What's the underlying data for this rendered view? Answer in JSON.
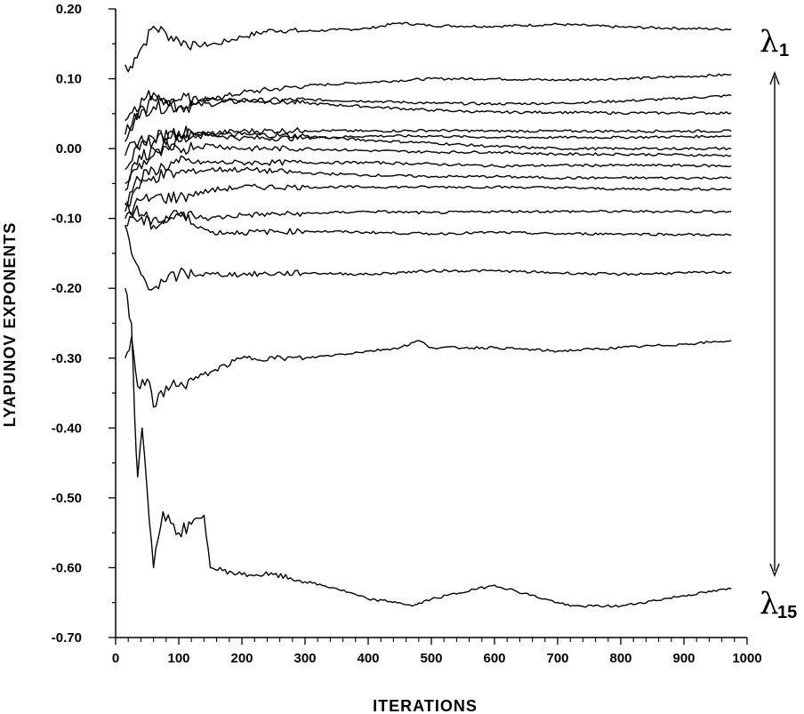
{
  "chart_data": {
    "type": "line",
    "title": "",
    "xlabel": "ITERATIONS",
    "ylabel": "LYAPUNOV EXPONENTS",
    "xlim": [
      0,
      1000
    ],
    "ylim": [
      -0.7,
      0.2
    ],
    "x_ticks": [
      0,
      100,
      200,
      300,
      400,
      500,
      600,
      700,
      800,
      900,
      1000
    ],
    "x_tick_labels": [
      "0",
      "100",
      "200",
      "300",
      "400",
      "500",
      "600",
      "700",
      "800",
      "900",
      "1000"
    ],
    "y_ticks": [
      0.2,
      0.1,
      0.0,
      -0.1,
      -0.2,
      -0.3,
      -0.4,
      -0.5,
      -0.6,
      -0.7
    ],
    "y_tick_labels": [
      "0.20",
      "0.10",
      "0.00",
      "-0.10",
      "-0.20",
      "-0.30",
      "-0.40",
      "-0.50",
      "-0.60",
      "-0.70"
    ],
    "grid": false,
    "series": [
      {
        "values": [
          [
            15,
            0.12
          ],
          [
            20,
            0.11
          ],
          [
            30,
            0.13
          ],
          [
            45,
            0.15
          ],
          [
            60,
            0.175
          ],
          [
            80,
            0.165
          ],
          [
            100,
            0.155
          ],
          [
            130,
            0.148
          ],
          [
            160,
            0.15
          ],
          [
            200,
            0.16
          ],
          [
            250,
            0.17
          ],
          [
            300,
            0.168
          ],
          [
            350,
            0.17
          ],
          [
            400,
            0.172
          ],
          [
            450,
            0.18
          ],
          [
            500,
            0.176
          ],
          [
            600,
            0.175
          ],
          [
            700,
            0.178
          ],
          [
            800,
            0.174
          ],
          [
            900,
            0.172
          ],
          [
            975,
            0.171
          ]
        ]
      },
      {
        "values": [
          [
            15,
            0.04
          ],
          [
            30,
            0.06
          ],
          [
            60,
            0.08
          ],
          [
            80,
            0.07
          ],
          [
            100,
            0.06
          ],
          [
            150,
            0.07
          ],
          [
            200,
            0.08
          ],
          [
            300,
            0.09
          ],
          [
            400,
            0.095
          ],
          [
            500,
            0.1
          ],
          [
            600,
            0.1
          ],
          [
            700,
            0.098
          ],
          [
            800,
            0.1
          ],
          [
            900,
            0.103
          ],
          [
            975,
            0.106
          ]
        ]
      },
      {
        "values": [
          [
            15,
            0.02
          ],
          [
            30,
            0.05
          ],
          [
            60,
            0.06
          ],
          [
            100,
            0.06
          ],
          [
            200,
            0.068
          ],
          [
            300,
            0.07
          ],
          [
            400,
            0.068
          ],
          [
            500,
            0.065
          ],
          [
            600,
            0.064
          ],
          [
            700,
            0.065
          ],
          [
            800,
            0.068
          ],
          [
            900,
            0.072
          ],
          [
            975,
            0.076
          ]
        ]
      },
      {
        "values": [
          [
            15,
            0.01
          ],
          [
            30,
            0.04
          ],
          [
            60,
            0.07
          ],
          [
            100,
            0.07
          ],
          [
            150,
            0.072
          ],
          [
            200,
            0.07
          ],
          [
            300,
            0.065
          ],
          [
            400,
            0.06
          ],
          [
            500,
            0.055
          ],
          [
            600,
            0.052
          ],
          [
            700,
            0.052
          ],
          [
            800,
            0.051
          ],
          [
            900,
            0.051
          ],
          [
            975,
            0.051
          ]
        ]
      },
      {
        "values": [
          [
            15,
            -0.03
          ],
          [
            30,
            0.0
          ],
          [
            60,
            0.01
          ],
          [
            100,
            0.02
          ],
          [
            150,
            0.022
          ],
          [
            200,
            0.025
          ],
          [
            300,
            0.026
          ],
          [
            400,
            0.025
          ],
          [
            500,
            0.026
          ],
          [
            600,
            0.025
          ],
          [
            700,
            0.025
          ],
          [
            800,
            0.025
          ],
          [
            900,
            0.025
          ],
          [
            975,
            0.025
          ]
        ]
      },
      {
        "values": [
          [
            15,
            -0.01
          ],
          [
            30,
            0.01
          ],
          [
            60,
            0.015
          ],
          [
            100,
            0.025
          ],
          [
            150,
            0.02
          ],
          [
            200,
            0.015
          ],
          [
            300,
            0.015
          ],
          [
            400,
            0.018
          ],
          [
            500,
            0.018
          ],
          [
            600,
            0.016
          ],
          [
            700,
            0.016
          ],
          [
            800,
            0.016
          ],
          [
            900,
            0.017
          ],
          [
            975,
            0.018
          ]
        ]
      },
      {
        "values": [
          [
            15,
            -0.05
          ],
          [
            30,
            -0.02
          ],
          [
            60,
            0.0
          ],
          [
            100,
            0.01
          ],
          [
            150,
            0.02
          ],
          [
            200,
            0.02
          ],
          [
            300,
            0.018
          ],
          [
            400,
            0.012
          ],
          [
            500,
            0.008
          ],
          [
            600,
            0.003
          ],
          [
            700,
            0.0
          ],
          [
            800,
            0.0
          ],
          [
            900,
            0.0
          ],
          [
            975,
            0.0
          ]
        ]
      },
      {
        "values": [
          [
            15,
            -0.06
          ],
          [
            30,
            -0.03
          ],
          [
            60,
            -0.01
          ],
          [
            100,
            0.0
          ],
          [
            150,
            0.005
          ],
          [
            200,
            0.0
          ],
          [
            300,
            0.0
          ],
          [
            400,
            -0.003
          ],
          [
            500,
            -0.005
          ],
          [
            600,
            -0.005
          ],
          [
            700,
            -0.008
          ],
          [
            800,
            -0.008
          ],
          [
            900,
            -0.009
          ],
          [
            975,
            -0.01
          ]
        ]
      },
      {
        "values": [
          [
            15,
            -0.08
          ],
          [
            30,
            -0.05
          ],
          [
            60,
            -0.03
          ],
          [
            100,
            -0.02
          ],
          [
            150,
            -0.02
          ],
          [
            200,
            -0.02
          ],
          [
            300,
            -0.02
          ],
          [
            400,
            -0.02
          ],
          [
            500,
            -0.022
          ],
          [
            600,
            -0.025
          ],
          [
            700,
            -0.024
          ],
          [
            800,
            -0.024
          ],
          [
            900,
            -0.024
          ],
          [
            975,
            -0.025
          ]
        ]
      },
      {
        "values": [
          [
            15,
            -0.09
          ],
          [
            30,
            -0.06
          ],
          [
            60,
            -0.04
          ],
          [
            100,
            -0.035
          ],
          [
            150,
            -0.03
          ],
          [
            200,
            -0.03
          ],
          [
            300,
            -0.035
          ],
          [
            400,
            -0.038
          ],
          [
            500,
            -0.04
          ],
          [
            600,
            -0.04
          ],
          [
            700,
            -0.042
          ],
          [
            800,
            -0.042
          ],
          [
            900,
            -0.042
          ],
          [
            975,
            -0.042
          ]
        ]
      },
      {
        "values": [
          [
            15,
            -0.1
          ],
          [
            30,
            -0.08
          ],
          [
            60,
            -0.07
          ],
          [
            100,
            -0.07
          ],
          [
            150,
            -0.06
          ],
          [
            200,
            -0.055
          ],
          [
            300,
            -0.055
          ],
          [
            400,
            -0.055
          ],
          [
            500,
            -0.055
          ],
          [
            600,
            -0.055
          ],
          [
            700,
            -0.056
          ],
          [
            800,
            -0.058
          ],
          [
            900,
            -0.058
          ],
          [
            975,
            -0.058
          ]
        ]
      },
      {
        "values": [
          [
            15,
            -0.11
          ],
          [
            30,
            -0.09
          ],
          [
            60,
            -0.1
          ],
          [
            100,
            -0.095
          ],
          [
            150,
            -0.1
          ],
          [
            200,
            -0.095
          ],
          [
            300,
            -0.093
          ],
          [
            400,
            -0.09
          ],
          [
            500,
            -0.092
          ],
          [
            600,
            -0.09
          ],
          [
            700,
            -0.09
          ],
          [
            800,
            -0.09
          ],
          [
            900,
            -0.09
          ],
          [
            975,
            -0.09
          ]
        ]
      },
      {
        "values": [
          [
            15,
            -0.08
          ],
          [
            30,
            -0.1
          ],
          [
            60,
            -0.11
          ],
          [
            100,
            -0.095
          ],
          [
            150,
            -0.12
          ],
          [
            200,
            -0.12
          ],
          [
            300,
            -0.118
          ],
          [
            400,
            -0.12
          ],
          [
            500,
            -0.122
          ],
          [
            600,
            -0.12
          ],
          [
            700,
            -0.122
          ],
          [
            800,
            -0.122
          ],
          [
            900,
            -0.123
          ],
          [
            975,
            -0.124
          ]
        ]
      },
      {
        "values": [
          [
            15,
            -0.11
          ],
          [
            25,
            -0.15
          ],
          [
            40,
            -0.18
          ],
          [
            60,
            -0.2
          ],
          [
            80,
            -0.19
          ],
          [
            100,
            -0.18
          ],
          [
            150,
            -0.18
          ],
          [
            200,
            -0.18
          ],
          [
            300,
            -0.178
          ],
          [
            400,
            -0.18
          ],
          [
            500,
            -0.175
          ],
          [
            600,
            -0.175
          ],
          [
            700,
            -0.178
          ],
          [
            800,
            -0.18
          ],
          [
            900,
            -0.178
          ],
          [
            975,
            -0.177
          ]
        ]
      },
      {
        "values": [
          [
            15,
            -0.3
          ],
          [
            25,
            -0.27
          ],
          [
            35,
            -0.34
          ],
          [
            50,
            -0.33
          ],
          [
            60,
            -0.37
          ],
          [
            80,
            -0.34
          ],
          [
            100,
            -0.34
          ],
          [
            150,
            -0.32
          ],
          [
            200,
            -0.3
          ],
          [
            300,
            -0.3
          ],
          [
            400,
            -0.29
          ],
          [
            450,
            -0.285
          ],
          [
            480,
            -0.275
          ],
          [
            500,
            -0.285
          ],
          [
            600,
            -0.285
          ],
          [
            700,
            -0.29
          ],
          [
            800,
            -0.285
          ],
          [
            900,
            -0.28
          ],
          [
            975,
            -0.275
          ]
        ]
      },
      {
        "values": [
          [
            15,
            -0.2
          ],
          [
            25,
            -0.25
          ],
          [
            30,
            -0.38
          ],
          [
            35,
            -0.47
          ],
          [
            42,
            -0.4
          ],
          [
            50,
            -0.49
          ],
          [
            60,
            -0.6
          ],
          [
            75,
            -0.52
          ],
          [
            100,
            -0.55
          ],
          [
            140,
            -0.525
          ],
          [
            150,
            -0.6
          ],
          [
            200,
            -0.61
          ],
          [
            250,
            -0.61
          ],
          [
            300,
            -0.62
          ],
          [
            350,
            -0.63
          ],
          [
            400,
            -0.645
          ],
          [
            450,
            -0.65
          ],
          [
            470,
            -0.655
          ],
          [
            500,
            -0.645
          ],
          [
            600,
            -0.625
          ],
          [
            700,
            -0.65
          ],
          [
            720,
            -0.655
          ],
          [
            800,
            -0.655
          ],
          [
            900,
            -0.64
          ],
          [
            975,
            -0.63
          ]
        ]
      }
    ]
  },
  "annotations": {
    "top": {
      "symbol": "λ",
      "subscript": "1"
    },
    "bottom": {
      "symbol": "λ",
      "subscript": "15"
    }
  }
}
